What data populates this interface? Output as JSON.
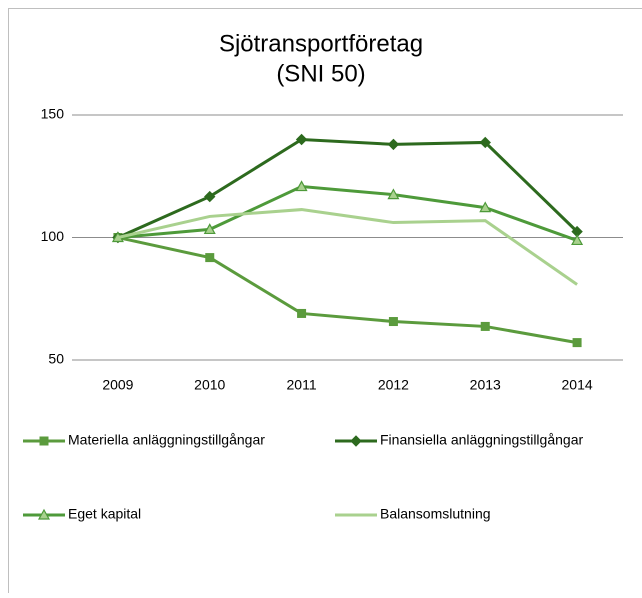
{
  "chart_data": {
    "type": "line",
    "title": [
      "Sjötransportföretag",
      "(SNI 50)"
    ],
    "categories": [
      "2009",
      "2010",
      "2011",
      "2012",
      "2013",
      "2014"
    ],
    "series": [
      {
        "name": "Materiella anläggningstillgångar",
        "color": "#5b9b3d",
        "marker": "square",
        "values": [
          100,
          91.8,
          69,
          65.7,
          63.7,
          57.1
        ]
      },
      {
        "name": "Finansiella anläggningstillgångar",
        "color": "#2d6a1e",
        "marker": "diamond",
        "values": [
          100,
          116.7,
          140,
          138,
          138.8,
          102.4
        ]
      },
      {
        "name": "Eget kapital",
        "color": "#4e9a3a",
        "marker": "triangle",
        "values": [
          100,
          103.3,
          120.8,
          117.5,
          112.2,
          98.8
        ]
      },
      {
        "name": "Balansomslutning",
        "color": "#a9d18e",
        "marker": "none",
        "values": [
          100,
          108.6,
          111.4,
          106.1,
          106.9,
          80.8
        ]
      }
    ],
    "ylim": [
      50,
      150
    ],
    "yticks": [
      50,
      100,
      150
    ],
    "grid": true
  }
}
